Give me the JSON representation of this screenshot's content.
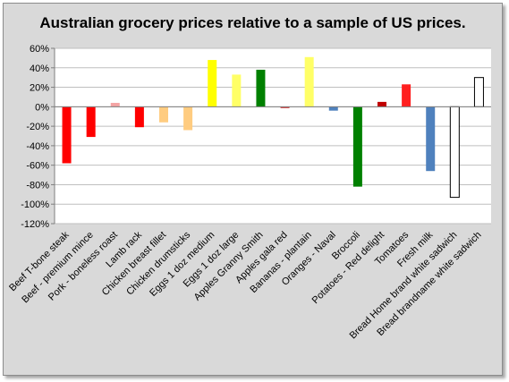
{
  "chart_data": {
    "type": "bar",
    "title": "Australian grocery prices relative to a sample of US prices.",
    "xlabel": "",
    "ylabel": "",
    "ylim": [
      -120,
      60
    ],
    "y_ticks": [
      "60%",
      "40%",
      "20%",
      "0%",
      "-20%",
      "-40%",
      "-60%",
      "-80%",
      "-100%",
      "-120%"
    ],
    "y_tick_values": [
      60,
      40,
      20,
      0,
      -20,
      -40,
      -60,
      -80,
      -100,
      -120
    ],
    "grid": true,
    "categories": [
      "Beef T-bone steak",
      "Beef - premium mince",
      "Pork - boneless roast",
      "Lamb rack",
      "Chicken breast fillet",
      "Chicken drumsticks",
      "Eggs 1 doz medium",
      "Eggs 1 doz large",
      "Apples Granny Smith",
      "Apples gala red",
      "Bananas - plantain",
      "Oranges - Naval",
      "Broccoli",
      "Potatoes - Red delight",
      "Tomatoes",
      "Fresh milk",
      "Bread Home brand white sadwich",
      "Bread brandname white sadwich"
    ],
    "values": [
      -58,
      -31,
      4,
      -21,
      -16,
      -24,
      48,
      33,
      38,
      -1,
      51,
      -4,
      -82,
      5,
      23,
      -66,
      -93,
      30
    ],
    "colors": [
      "#ff0000",
      "#ff0000",
      "#f4a4a4",
      "#ff0000",
      "#ffcc80",
      "#ffcc80",
      "#ffff00",
      "#ffff66",
      "#008000",
      "#cc3333",
      "#ffff66",
      "#4f81bd",
      "#008000",
      "#c00000",
      "#ff2020",
      "#4f81bd",
      "#ffffff",
      "#ffffff"
    ],
    "outlined": [
      false,
      false,
      false,
      false,
      false,
      false,
      false,
      false,
      false,
      false,
      false,
      false,
      false,
      false,
      false,
      false,
      true,
      true
    ]
  }
}
